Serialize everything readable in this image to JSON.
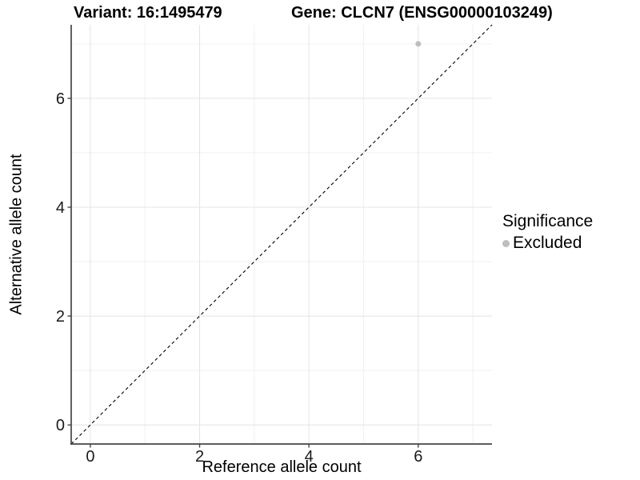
{
  "header": {
    "variant_title": "Variant: 16:1495479",
    "gene_title": "Gene: CLCN7 (ENSG00000103249)"
  },
  "chart_data": {
    "type": "scatter",
    "xlabel": "Reference allele count",
    "ylabel": "Alternative allele count",
    "xlim": [
      -0.35,
      7.35
    ],
    "ylim": [
      -0.35,
      7.35
    ],
    "xticks": [
      0,
      2,
      4,
      6
    ],
    "yticks": [
      0,
      2,
      4,
      6
    ],
    "minor_xticks": [
      1,
      3,
      5,
      7
    ],
    "minor_yticks": [
      1,
      3,
      5,
      7
    ],
    "grid": true,
    "points": [
      {
        "x": 6,
        "y": 7,
        "series": "Excluded"
      }
    ],
    "reference_line": {
      "type": "identity",
      "style": "dashed",
      "color": "#000000"
    },
    "legend": {
      "title": "Significance",
      "position": "right",
      "items": [
        {
          "label": "Excluded",
          "color": "#bebebe"
        }
      ]
    },
    "colors": {
      "point": "#bebebe",
      "grid_major": "#e4e4e4",
      "grid_minor": "#f1f1f1",
      "axis_line": "#454545",
      "tick_mark": "#454545",
      "tick_label": "#1a1a1a",
      "background": "#ffffff"
    }
  }
}
